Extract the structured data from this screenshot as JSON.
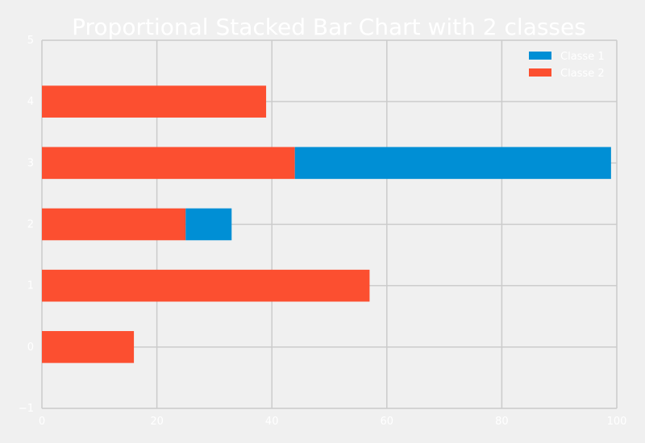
{
  "chart_data": {
    "type": "bar",
    "orientation": "horizontal",
    "stacked": true,
    "title": "Proportional Stacked Bar Chart with 2 classes",
    "xlabel": "",
    "ylabel": "",
    "xlim": [
      0,
      100
    ],
    "ylim": [
      -1,
      5
    ],
    "xticks": [
      "0",
      "20",
      "40",
      "60",
      "80",
      "100"
    ],
    "yticks": [
      "−1",
      "0",
      "1",
      "2",
      "3",
      "4",
      "5"
    ],
    "categories": [
      0,
      1,
      2,
      3,
      4
    ],
    "series": [
      {
        "name": "Classe 2",
        "color": "#fc4f30",
        "values": [
          16,
          57,
          25,
          44,
          39
        ]
      },
      {
        "name": "Classe 1",
        "color": "#008fd5",
        "values": [
          0,
          0,
          8,
          55,
          0
        ]
      }
    ],
    "legend": {
      "placement": "top-right",
      "order": [
        "Classe 1",
        "Classe 2"
      ]
    },
    "grid": true
  }
}
